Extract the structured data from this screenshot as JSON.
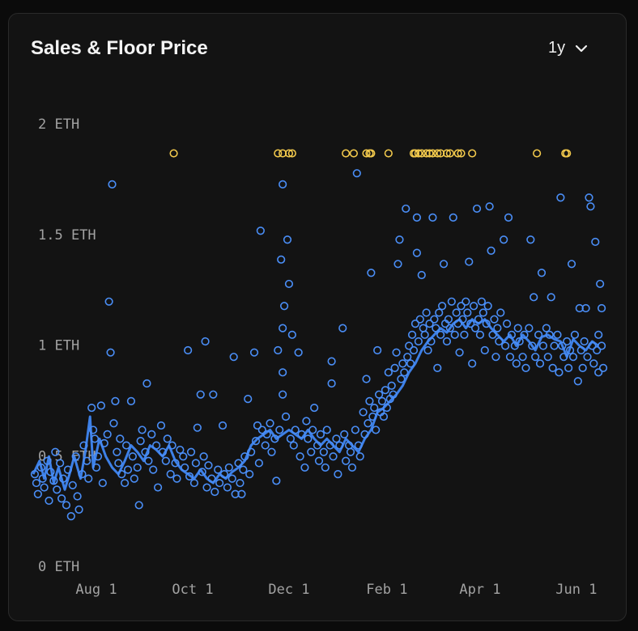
{
  "chart_data": {
    "type": "scatter",
    "title": "Sales & Floor Price",
    "xlim": [
      -40,
      322
    ],
    "xticks": [
      {
        "value": 0,
        "label": "Aug 1"
      },
      {
        "value": 61,
        "label": "Oct 1"
      },
      {
        "value": 122,
        "label": "Dec 1"
      },
      {
        "value": 184,
        "label": "Feb 1"
      },
      {
        "value": 243,
        "label": "Apr 1"
      },
      {
        "value": 304,
        "label": "Jun 1"
      }
    ],
    "ylim": [
      0,
      2
    ],
    "yticks": [
      {
        "value": 0,
        "label": "0 ETH"
      },
      {
        "value": 0.5,
        "label": "0.5 ETH"
      },
      {
        "value": 1,
        "label": "1 ETH"
      },
      {
        "value": 1.5,
        "label": "1.5 ETH"
      },
      {
        "value": 2,
        "label": "2 ETH"
      }
    ],
    "series": [
      {
        "style": "line",
        "color": "#3f86f2",
        "x": [
          -40,
          -36,
          -33,
          -30,
          -27,
          -24,
          -20,
          -17,
          -14,
          -10,
          -7,
          -4,
          -2,
          2,
          6,
          10,
          14,
          18,
          22,
          26,
          30,
          34,
          38,
          42,
          46,
          50,
          54,
          58,
          62,
          66,
          70,
          74,
          78,
          82,
          86,
          90,
          94,
          98,
          102,
          106,
          110,
          114,
          118,
          122,
          126,
          130,
          134,
          138,
          142,
          146,
          150,
          154,
          158,
          162,
          166,
          170,
          174,
          178,
          182,
          186,
          190,
          194,
          198,
          202,
          206,
          210,
          214,
          218,
          222,
          226,
          230,
          234,
          238,
          242,
          246,
          250,
          254,
          258,
          262,
          266,
          270,
          274,
          278,
          282,
          286,
          290,
          294,
          298,
          302,
          306,
          310,
          314,
          318
        ],
        "values": [
          0.42,
          0.48,
          0.4,
          0.5,
          0.38,
          0.45,
          0.35,
          0.42,
          0.5,
          0.4,
          0.52,
          0.68,
          0.45,
          0.58,
          0.5,
          0.45,
          0.42,
          0.48,
          0.55,
          0.52,
          0.48,
          0.55,
          0.53,
          0.5,
          0.55,
          0.48,
          0.44,
          0.42,
          0.4,
          0.44,
          0.4,
          0.38,
          0.42,
          0.4,
          0.43,
          0.45,
          0.48,
          0.55,
          0.58,
          0.6,
          0.62,
          0.58,
          0.6,
          0.62,
          0.6,
          0.58,
          0.62,
          0.58,
          0.55,
          0.58,
          0.55,
          0.52,
          0.58,
          0.55,
          0.52,
          0.58,
          0.62,
          0.7,
          0.72,
          0.75,
          0.78,
          0.82,
          0.88,
          0.92,
          0.98,
          1.02,
          1.05,
          1.08,
          1.06,
          1.1,
          1.12,
          1.08,
          1.12,
          1.1,
          1.12,
          1.08,
          1.05,
          1.02,
          1.05,
          1.0,
          1.05,
          1.02,
          0.98,
          1.04,
          1.05,
          1.03,
          1.02,
          0.95,
          1.03,
          1.0,
          0.98,
          1.02,
          1.0
        ]
      },
      {
        "style": "points",
        "color": "#4a8ef7",
        "x": [
          -39,
          -38,
          -37,
          -35,
          -34,
          -33,
          -31,
          -30,
          -29,
          -27,
          -26,
          -25,
          -23,
          -22,
          -21,
          -19,
          -18,
          -16,
          -15,
          -13,
          -12,
          -11,
          -9,
          -8,
          -6,
          -5,
          -3,
          -2,
          -1,
          0,
          1,
          3,
          4,
          5,
          7,
          8,
          9,
          10,
          11,
          12,
          13,
          14,
          15,
          16,
          18,
          19,
          20,
          22,
          23,
          24,
          26,
          27,
          28,
          29,
          31,
          32,
          33,
          35,
          36,
          38,
          39,
          41,
          42,
          44,
          45,
          47,
          48,
          50,
          51,
          53,
          55,
          56,
          58,
          59,
          60,
          62,
          63,
          64,
          66,
          67,
          68,
          69,
          70,
          71,
          73,
          74,
          75,
          77,
          78,
          80,
          81,
          83,
          84,
          86,
          87,
          88,
          90,
          91,
          92,
          93,
          94,
          96,
          97,
          98,
          100,
          101,
          102,
          103,
          104,
          105,
          107,
          108,
          110,
          111,
          113,
          114,
          115,
          116,
          117,
          118,
          118,
          118,
          118,
          119,
          120,
          121,
          122,
          123,
          124,
          125,
          126,
          128,
          129,
          130,
          132,
          133,
          134,
          136,
          137,
          138,
          140,
          141,
          142,
          144,
          145,
          146,
          148,
          149,
          149,
          150,
          152,
          153,
          154,
          156,
          157,
          158,
          160,
          161,
          162,
          164,
          165,
          166,
          167,
          169,
          170,
          171,
          172,
          173,
          174,
          175,
          176,
          177,
          178,
          179,
          180,
          181,
          182,
          183,
          184,
          185,
          186,
          187,
          188,
          189,
          190,
          191,
          192,
          193,
          194,
          195,
          196,
          197,
          198,
          199,
          200,
          201,
          202,
          203,
          203,
          204,
          205,
          206,
          207,
          208,
          209,
          210,
          211,
          212,
          213,
          214,
          215,
          216,
          217,
          218,
          219,
          220,
          221,
          222,
          223,
          224,
          225,
          226,
          227,
          228,
          229,
          230,
          231,
          232,
          233,
          234,
          235,
          236,
          237,
          238,
          239,
          240,
          241,
          242,
          243,
          244,
          245,
          246,
          247,
          248,
          249,
          250,
          251,
          252,
          253,
          254,
          255,
          256,
          258,
          259,
          260,
          261,
          262,
          263,
          265,
          266,
          267,
          268,
          270,
          271,
          272,
          274,
          275,
          276,
          277,
          278,
          280,
          281,
          282,
          283,
          285,
          286,
          287,
          288,
          289,
          290,
          292,
          293,
          294,
          295,
          296,
          298,
          299,
          300,
          301,
          302,
          303,
          305,
          306,
          307,
          308,
          309,
          310,
          311,
          312,
          313,
          314,
          315,
          316,
          317,
          318,
          318,
          319,
          320,
          320,
          321
        ],
        "values": [
          0.42,
          0.38,
          0.33,
          0.45,
          0.4,
          0.36,
          0.48,
          0.3,
          0.43,
          0.39,
          0.52,
          0.35,
          0.47,
          0.31,
          0.4,
          0.28,
          0.44,
          0.23,
          0.37,
          0.5,
          0.32,
          0.26,
          0.42,
          0.55,
          0.48,
          0.4,
          0.72,
          0.62,
          0.58,
          0.45,
          0.5,
          0.73,
          0.38,
          0.56,
          0.6,
          1.2,
          0.97,
          1.73,
          0.65,
          0.75,
          0.52,
          0.47,
          0.58,
          0.42,
          0.38,
          0.55,
          0.44,
          0.75,
          0.5,
          0.4,
          0.45,
          0.28,
          0.57,
          0.62,
          0.52,
          0.83,
          0.48,
          0.6,
          0.44,
          0.55,
          0.36,
          0.64,
          0.52,
          0.48,
          0.58,
          0.42,
          0.55,
          0.47,
          0.4,
          0.53,
          0.5,
          0.45,
          0.98,
          0.41,
          0.52,
          0.38,
          0.47,
          0.63,
          0.78,
          0.43,
          0.5,
          1.02,
          0.36,
          0.46,
          0.4,
          0.78,
          0.34,
          0.44,
          0.38,
          0.64,
          0.42,
          0.36,
          0.45,
          0.4,
          0.95,
          0.33,
          0.47,
          0.38,
          0.33,
          0.44,
          0.5,
          0.76,
          0.42,
          0.52,
          0.97,
          0.57,
          0.64,
          0.47,
          1.52,
          0.62,
          0.55,
          0.6,
          0.65,
          0.52,
          0.58,
          0.39,
          0.98,
          0.62,
          1.39,
          1.73,
          1.08,
          0.88,
          0.78,
          1.18,
          0.68,
          1.48,
          1.28,
          0.58,
          1.05,
          0.55,
          0.62,
          0.97,
          0.5,
          0.6,
          0.45,
          0.66,
          0.58,
          0.52,
          0.62,
          0.72,
          0.55,
          0.48,
          0.6,
          0.52,
          0.45,
          0.62,
          0.55,
          0.93,
          0.83,
          0.5,
          0.58,
          0.42,
          0.55,
          1.08,
          0.6,
          0.48,
          0.55,
          0.52,
          0.45,
          0.62,
          1.78,
          0.55,
          0.5,
          0.7,
          0.6,
          0.85,
          0.65,
          0.75,
          1.33,
          0.68,
          0.72,
          0.62,
          0.98,
          0.78,
          0.7,
          0.75,
          0.68,
          0.8,
          0.72,
          0.88,
          0.76,
          0.82,
          0.78,
          0.9,
          0.97,
          1.37,
          1.48,
          0.85,
          0.92,
          0.88,
          1.62,
          0.95,
          1.0,
          0.92,
          1.05,
          0.98,
          1.1,
          1.42,
          1.58,
          1.02,
          1.12,
          1.32,
          1.08,
          1.05,
          1.15,
          0.98,
          1.1,
          1.02,
          1.58,
          1.12,
          1.08,
          0.9,
          1.15,
          1.05,
          1.18,
          1.37,
          1.1,
          1.02,
          1.12,
          1.08,
          1.2,
          1.58,
          1.05,
          1.15,
          1.1,
          0.97,
          1.18,
          1.12,
          1.05,
          1.2,
          1.15,
          1.38,
          1.1,
          0.92,
          1.18,
          1.08,
          1.62,
          1.12,
          1.05,
          1.2,
          1.15,
          0.98,
          1.1,
          1.18,
          1.63,
          1.43,
          1.05,
          1.12,
          0.95,
          1.08,
          1.02,
          1.15,
          1.48,
          1.0,
          1.1,
          1.58,
          0.95,
          1.05,
          1.0,
          0.92,
          1.08,
          1.02,
          0.95,
          1.05,
          0.9,
          1.08,
          1.48,
          1.0,
          1.22,
          0.95,
          1.05,
          0.92,
          1.33,
          1.0,
          1.08,
          0.95,
          1.05,
          1.22,
          0.9,
          1.0,
          1.05,
          0.88,
          1.67,
          1.0,
          0.95,
          1.02,
          0.9,
          0.98,
          1.37,
          0.95,
          1.05,
          0.84,
          1.17,
          0.98,
          0.9,
          1.02,
          1.17,
          0.95,
          1.67,
          1.63,
          1.0,
          0.92,
          1.47,
          0.98,
          1.05,
          0.88,
          1.28,
          1.17,
          1.0,
          0.9
        ]
      },
      {
        "style": "points",
        "color": "#f2c94c",
        "x": [
          49,
          115,
          118,
          122,
          124,
          158,
          163,
          171,
          173,
          174,
          185,
          201,
          202,
          204,
          206,
          209,
          211,
          213,
          216,
          218,
          222,
          224,
          229,
          231,
          238,
          279,
          297,
          298
        ],
        "values": [
          1.87,
          1.87,
          1.87,
          1.87,
          1.87,
          1.87,
          1.87,
          1.87,
          1.87,
          1.87,
          1.87,
          1.87,
          1.87,
          1.87,
          1.87,
          1.87,
          1.87,
          1.87,
          1.87,
          1.87,
          1.87,
          1.87,
          1.87,
          1.87,
          1.87,
          1.87,
          1.87,
          1.87
        ]
      }
    ]
  },
  "controls": {
    "range": "1y"
  }
}
